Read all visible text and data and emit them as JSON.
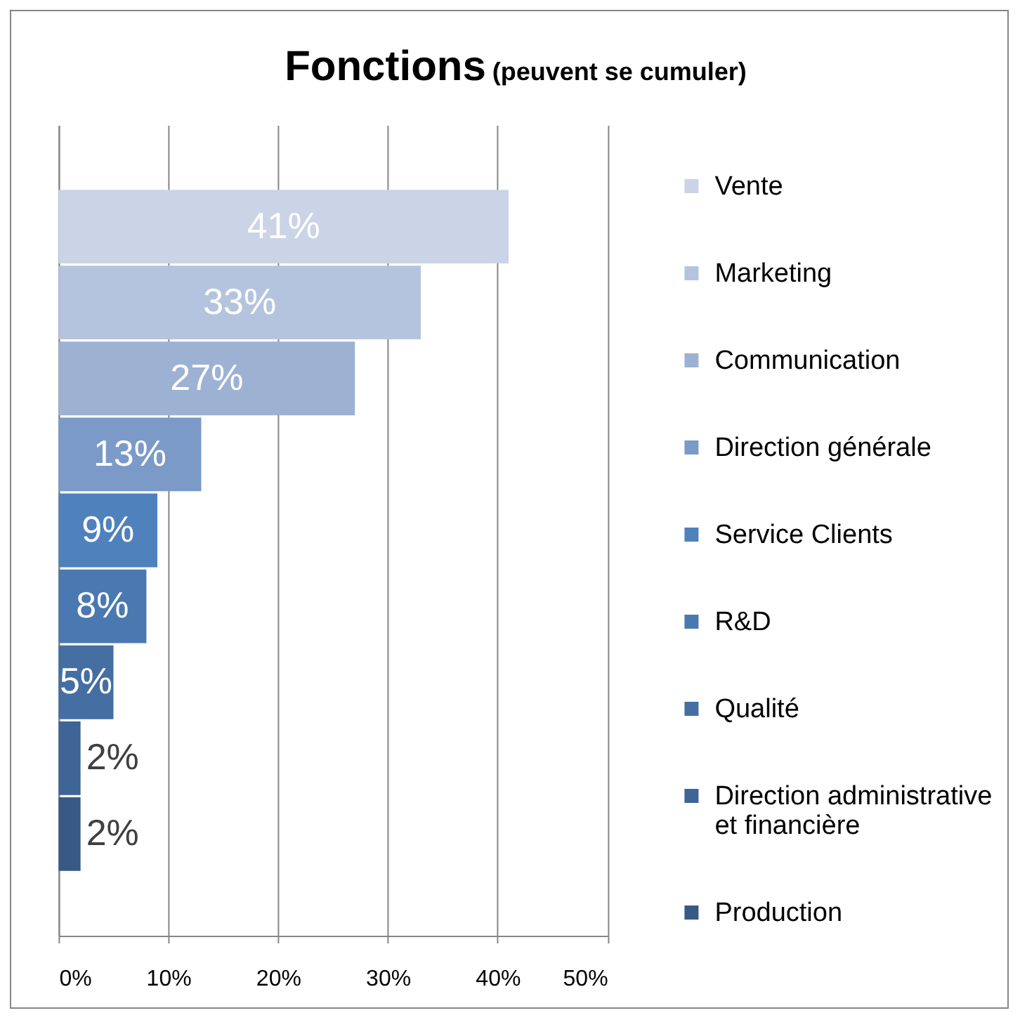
{
  "chart_data": {
    "type": "bar",
    "orientation": "horizontal",
    "title": "Fonctions",
    "subtitle": "(peuvent se cumuler)",
    "categories": [
      null
    ],
    "series": [
      {
        "name": "Vente",
        "color": "#cad4e6",
        "values": [
          41
        ],
        "value_labels": [
          "41%"
        ]
      },
      {
        "name": "Marketing",
        "color": "#b5c4de",
        "values": [
          33
        ],
        "value_labels": [
          "33%"
        ]
      },
      {
        "name": "Communication",
        "color": "#9db2d3",
        "values": [
          27
        ],
        "value_labels": [
          "27%"
        ]
      },
      {
        "name": "Direction générale",
        "color": "#7b9ac7",
        "values": [
          13
        ],
        "value_labels": [
          "13%"
        ]
      },
      {
        "name": "Service Clients",
        "color": "#4f81bd",
        "values": [
          9
        ],
        "value_labels": [
          "9%"
        ]
      },
      {
        "name": "R&D",
        "color": "#4a78b1",
        "values": [
          8
        ],
        "value_labels": [
          "8%"
        ]
      },
      {
        "name": "Qualité",
        "color": "#456ea3",
        "values": [
          5
        ],
        "value_labels": [
          "5%"
        ]
      },
      {
        "name": "Direction administrative et financière",
        "color": "#3f6496",
        "values": [
          2
        ],
        "value_labels": [
          "2%"
        ]
      },
      {
        "name": "Production",
        "color": "#375984",
        "values": [
          2
        ],
        "value_labels": [
          "2%"
        ]
      }
    ],
    "xlim": [
      0,
      50
    ],
    "xticks": [
      {
        "value": 0,
        "label": "0%"
      },
      {
        "value": 10,
        "label": "10%"
      },
      {
        "value": 20,
        "label": "20%"
      },
      {
        "value": 30,
        "label": "30%"
      },
      {
        "value": 40,
        "label": "40%"
      },
      {
        "value": 50,
        "label": "50%"
      }
    ],
    "grid": "x",
    "legend": "right",
    "tick_labels": "x"
  }
}
